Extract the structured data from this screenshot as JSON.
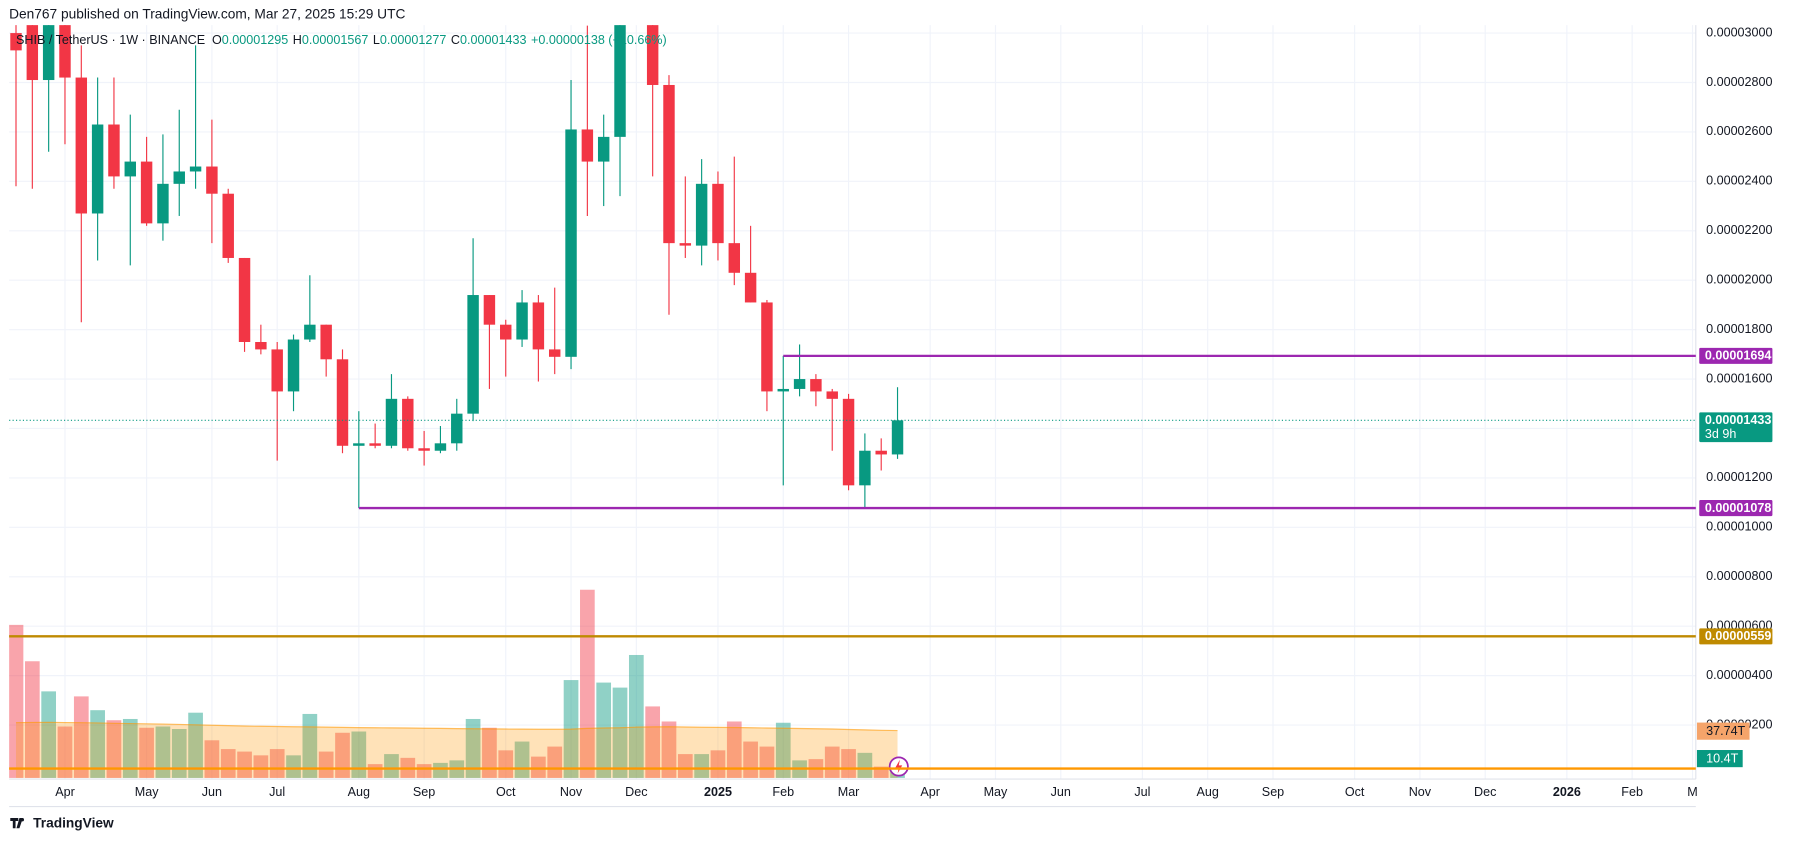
{
  "header": {
    "publisher": "Den767 published on TradingView.com, Mar 27, 2025 15:29 UTC",
    "symbol": "SHIB / TetherUS · 1W · BINANCE",
    "ohlc": [
      {
        "key": "O",
        "value": "0.00001295"
      },
      {
        "key": "H",
        "value": "0.00001567"
      },
      {
        "key": "L",
        "value": "0.00001277"
      },
      {
        "key": "C",
        "value": "0.00001433"
      }
    ],
    "change": "+0.00000138 (+10.66%)"
  },
  "footer": {
    "brand": "TradingView"
  },
  "chart_data": {
    "type": "candlestick",
    "up_color": "#089981",
    "down_color": "#f23645",
    "open": [
      3e-05,
      3.1e-05,
      2.81e-05,
      3.05e-05,
      2.82e-05,
      2.27e-05,
      2.63e-05,
      2.42e-05,
      2.48e-05,
      2.23e-05,
      2.39e-05,
      2.44e-05,
      2.46e-05,
      2.35e-05,
      2.09e-05,
      1.75e-05,
      1.72e-05,
      1.55e-05,
      1.76e-05,
      1.82e-05,
      1.68e-05,
      1.33e-05,
      1.34e-05,
      1.33e-05,
      1.52e-05,
      1.32e-05,
      1.31e-05,
      1.34e-05,
      1.46e-05,
      1.94e-05,
      1.82e-05,
      1.76e-05,
      1.91e-05,
      1.72e-05,
      1.69e-05,
      2.61e-05,
      2.48e-05,
      2.58e-05,
      3.08e-05,
      3.2e-05,
      2.79e-05,
      2.15e-05,
      2.14e-05,
      2.39e-05,
      2.15e-05,
      2.03e-05,
      1.91e-05,
      1.55e-05,
      1.56e-05,
      1.6e-05,
      1.55e-05,
      1.52e-05,
      1.17e-05,
      1.31e-05,
      1.295e-05
    ],
    "high": [
      3.3e-05,
      3.2e-05,
      3.2e-05,
      3.15e-05,
      2.95e-05,
      2.82e-05,
      2.82e-05,
      2.67e-05,
      2.58e-05,
      2.59e-05,
      2.69e-05,
      2.95e-05,
      2.65e-05,
      2.37e-05,
      2.09e-05,
      1.82e-05,
      1.75e-05,
      1.78e-05,
      2.02e-05,
      1.82e-05,
      1.72e-05,
      1.47e-05,
      1.42e-05,
      1.62e-05,
      1.53e-05,
      1.39e-05,
      1.41e-05,
      1.52e-05,
      2.17e-05,
      1.94e-05,
      1.84e-05,
      1.96e-05,
      1.94e-05,
      1.97e-05,
      2.81e-05,
      3.03e-05,
      2.67e-05,
      3.2e-05,
      3.4e-05,
      3.25e-05,
      2.83e-05,
      2.42e-05,
      2.49e-05,
      2.44e-05,
      2.5e-05,
      2.22e-05,
      1.92e-05,
      1.694e-05,
      1.74e-05,
      1.62e-05,
      1.56e-05,
      1.54e-05,
      1.38e-05,
      1.36e-05,
      1.567e-05
    ],
    "low": [
      2.38e-05,
      2.37e-05,
      2.52e-05,
      2.55e-05,
      1.83e-05,
      2.08e-05,
      2.37e-05,
      2.06e-05,
      2.22e-05,
      2.16e-05,
      2.26e-05,
      2.37e-05,
      2.15e-05,
      2.07e-05,
      1.71e-05,
      1.7e-05,
      1.27e-05,
      1.47e-05,
      1.75e-05,
      1.61e-05,
      1.3e-05,
      1.078e-05,
      1.32e-05,
      1.32e-05,
      1.31e-05,
      1.25e-05,
      1.3e-05,
      1.31e-05,
      1.43e-05,
      1.56e-05,
      1.61e-05,
      1.73e-05,
      1.59e-05,
      1.62e-05,
      1.64e-05,
      2.26e-05,
      2.3e-05,
      2.34e-05,
      3.06e-05,
      2.42e-05,
      1.86e-05,
      2.09e-05,
      2.06e-05,
      2.08e-05,
      1.98e-05,
      1.91e-05,
      1.47e-05,
      1.17e-05,
      1.53e-05,
      1.49e-05,
      1.31e-05,
      1.15e-05,
      1.078e-05,
      1.23e-05,
      1.277e-05
    ],
    "close": [
      2.93e-05,
      2.81e-05,
      3.05e-05,
      2.82e-05,
      2.27e-05,
      2.63e-05,
      2.42e-05,
      2.48e-05,
      2.23e-05,
      2.39e-05,
      2.44e-05,
      2.46e-05,
      2.35e-05,
      2.09e-05,
      1.75e-05,
      1.72e-05,
      1.55e-05,
      1.76e-05,
      1.82e-05,
      1.68e-05,
      1.33e-05,
      1.34e-05,
      1.33e-05,
      1.52e-05,
      1.32e-05,
      1.31e-05,
      1.34e-05,
      1.46e-05,
      1.94e-05,
      1.82e-05,
      1.76e-05,
      1.91e-05,
      1.72e-05,
      1.69e-05,
      2.61e-05,
      2.48e-05,
      2.58e-05,
      3.08e-05,
      3.25e-05,
      2.79e-05,
      2.15e-05,
      2.14e-05,
      2.39e-05,
      2.15e-05,
      2.03e-05,
      1.91e-05,
      1.55e-05,
      1.56e-05,
      1.6e-05,
      1.55e-05,
      1.52e-05,
      1.17e-05,
      1.31e-05,
      1.295e-05,
      1.433e-05
    ],
    "volume": {
      "values": [
        122,
        93,
        69,
        41,
        65,
        54,
        46,
        47,
        40,
        41,
        39,
        52,
        30,
        23,
        21,
        18,
        23,
        18,
        51,
        21,
        36,
        37,
        11,
        19,
        16,
        11,
        12,
        14,
        47,
        40,
        22,
        29,
        17,
        25,
        78,
        150,
        76,
        72,
        98,
        57,
        45,
        19,
        19,
        22,
        45,
        29,
        25,
        44,
        14,
        15,
        25,
        23,
        20,
        9,
        10.4
      ],
      "value_labels": [
        null,
        null,
        null,
        null,
        null,
        null,
        null,
        null,
        null,
        null,
        null,
        null,
        null,
        null,
        null,
        null,
        null,
        null,
        null,
        null,
        null,
        null,
        null,
        null,
        null,
        null,
        null,
        null,
        null,
        null,
        null,
        null,
        null,
        null,
        null,
        null,
        null,
        null,
        null,
        null,
        null,
        null,
        null,
        null,
        null,
        null,
        null,
        null,
        null,
        null,
        null,
        null,
        null,
        null,
        "10.4T"
      ],
      "vlim": [
        0,
        600
      ]
    },
    "volume_ma": {
      "color": "#ff9800",
      "values": [
        44,
        44.2,
        44.3,
        44.1,
        44,
        43.8,
        43.5,
        43.3,
        43.1,
        42.9,
        42.6,
        42.3,
        42,
        41.7,
        41.4,
        41.2,
        41,
        40.8,
        40.7,
        40.5,
        40.3,
        40.1,
        40,
        39.9,
        39.8,
        39.6,
        39.5,
        39.3,
        39.2,
        39.1,
        39,
        38.9,
        38.8,
        38.8,
        38.9,
        39.5,
        39.8,
        40,
        40.5,
        40.7,
        40.8,
        40.6,
        40.4,
        40.3,
        40.2,
        40,
        39.8,
        39.6,
        39.4,
        39.2,
        39,
        38.6,
        38.3,
        38,
        37.74
      ],
      "value_labels": [
        null,
        null,
        null,
        null,
        null,
        null,
        null,
        null,
        null,
        null,
        null,
        null,
        null,
        null,
        null,
        null,
        null,
        null,
        null,
        null,
        null,
        null,
        null,
        null,
        null,
        null,
        null,
        null,
        null,
        null,
        null,
        null,
        null,
        null,
        null,
        null,
        null,
        null,
        null,
        null,
        null,
        null,
        null,
        null,
        null,
        null,
        null,
        null,
        null,
        null,
        null,
        null,
        null,
        null,
        "37.74T"
      ]
    },
    "levels": [
      {
        "value": 1.694e-05,
        "label": "0.00001694",
        "color": "#9c27b0",
        "start": 47
      },
      {
        "value": 1.078e-05,
        "label": "0.00001078",
        "color": "#9c27b0",
        "start": 21
      },
      {
        "value": 5.59e-06,
        "label": "0.00000559",
        "color": "#bf8a00",
        "start": null
      },
      {
        "value": 2.4e-07,
        "color": "#ff9800",
        "start": null
      }
    ],
    "last_price": {
      "value": 1.433e-05,
      "label": "0.00001433",
      "countdown": "3d 9h",
      "color": "#089981"
    },
    "xlim": [
      -0.42,
      102.9
    ],
    "xticks": [
      {
        "value": 3,
        "label": "Apr"
      },
      {
        "value": 8,
        "label": "May"
      },
      {
        "value": 12,
        "label": "Jun"
      },
      {
        "value": 16,
        "label": "Jul"
      },
      {
        "value": 21,
        "label": "Aug"
      },
      {
        "value": 25,
        "label": "Sep"
      },
      {
        "value": 30,
        "label": "Oct"
      },
      {
        "value": 34,
        "label": "Nov"
      },
      {
        "value": 38,
        "label": "Dec"
      },
      {
        "value": 43,
        "label": "2025"
      },
      {
        "value": 47,
        "label": "Feb"
      },
      {
        "value": 51,
        "label": "Mar"
      },
      {
        "value": 56,
        "label": "Apr"
      },
      {
        "value": 60,
        "label": "May"
      },
      {
        "value": 64,
        "label": "Jun"
      },
      {
        "value": 69,
        "label": "Jul"
      },
      {
        "value": 73,
        "label": "Aug"
      },
      {
        "value": 77,
        "label": "Sep"
      },
      {
        "value": 82,
        "label": "Oct"
      },
      {
        "value": 86,
        "label": "Nov"
      },
      {
        "value": 90,
        "label": "Dec"
      },
      {
        "value": 95,
        "label": "2026"
      },
      {
        "value": 99,
        "label": "Feb"
      },
      {
        "value": 102.7,
        "label": "M"
      }
    ],
    "ylim": [
      -1.4e-07,
      3.032e-05
    ],
    "yticks": [
      {
        "value": 3e-05,
        "label": "0.00003000"
      },
      {
        "value": 2.8e-05,
        "label": "0.00002800"
      },
      {
        "value": 2.6e-05,
        "label": "0.00002600"
      },
      {
        "value": 2.4e-05,
        "label": "0.00002400"
      },
      {
        "value": 2.2e-05,
        "label": "0.00002200"
      },
      {
        "value": 2e-05,
        "label": "0.00002000"
      },
      {
        "value": 1.8e-05,
        "label": "0.00001800"
      },
      {
        "value": 1.6e-05,
        "label": "0.00001600"
      },
      {
        "value": 1.4e-05,
        "label": "0.00001400"
      },
      {
        "value": 1.2e-05,
        "label": "0.00001200"
      },
      {
        "value": 1e-05,
        "label": "0.00001000"
      },
      {
        "value": 8e-06,
        "label": "0.00000800"
      },
      {
        "value": 6e-06,
        "label": "0.00000600"
      },
      {
        "value": 4e-06,
        "label": "0.00000400"
      },
      {
        "value": 2e-06,
        "label": "0.00000200"
      }
    ],
    "grid": true
  }
}
